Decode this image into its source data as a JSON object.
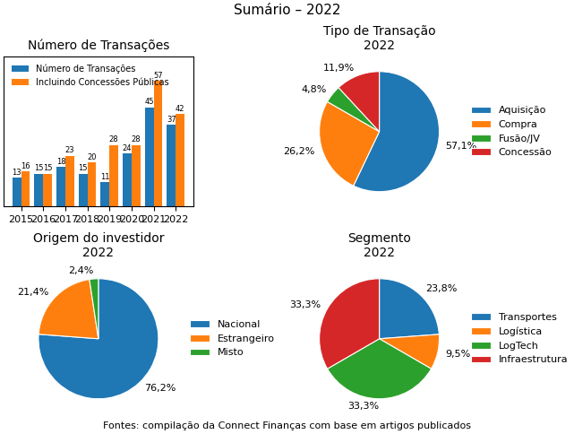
{
  "title": "Sumário – 2022",
  "annotations": [
    "Fontes: compilação da Connect Finanças com base em artigos publicados"
  ],
  "chart_data": [
    {
      "type": "bar",
      "title": "Número de Transações",
      "categories": [
        "2015",
        "2016",
        "2017",
        "2018",
        "2019",
        "2020",
        "2021",
        "2022"
      ],
      "series": [
        {
          "name": "Número de Transações",
          "values": [
            13,
            15,
            18,
            15,
            11,
            24,
            45,
            37
          ]
        },
        {
          "name": "Incluindo Concessões Públicas",
          "values": [
            16,
            15,
            23,
            20,
            28,
            28,
            57,
            42
          ]
        }
      ],
      "ylim": [
        0,
        68
      ],
      "tick_labels": "x",
      "data_labels": true,
      "legend": "upper left"
    },
    {
      "type": "pie",
      "title": "Tipo de Transação",
      "subtitle": "2022",
      "categories": [
        "Aquisição",
        "Compra",
        "Fusão/JV",
        "Concessão"
      ],
      "values": [
        57.1,
        26.2,
        4.8,
        11.9
      ],
      "value_labels": [
        "57,1%",
        "26,2%",
        "4,8%",
        "11,9%"
      ],
      "data_labels": true,
      "legend": "center left"
    },
    {
      "type": "pie",
      "title": "Origem do investidor",
      "subtitle": "2022",
      "categories": [
        "Nacional",
        "Estrangeiro",
        "Misto"
      ],
      "values": [
        76.2,
        21.4,
        2.4
      ],
      "value_labels": [
        "76,2%",
        "21,4%",
        "2,4%"
      ],
      "data_labels": true,
      "legend": "center left"
    },
    {
      "type": "pie",
      "title": "Segmento",
      "subtitle": "2022",
      "categories": [
        "Transportes",
        "Logística",
        "LogTech",
        "Infraestrutura"
      ],
      "values": [
        23.8,
        9.5,
        33.3,
        33.3
      ],
      "value_labels": [
        "23,8%",
        "9,5%",
        "33,3%",
        "33,3%"
      ],
      "data_labels": true,
      "legend": "center left"
    }
  ]
}
